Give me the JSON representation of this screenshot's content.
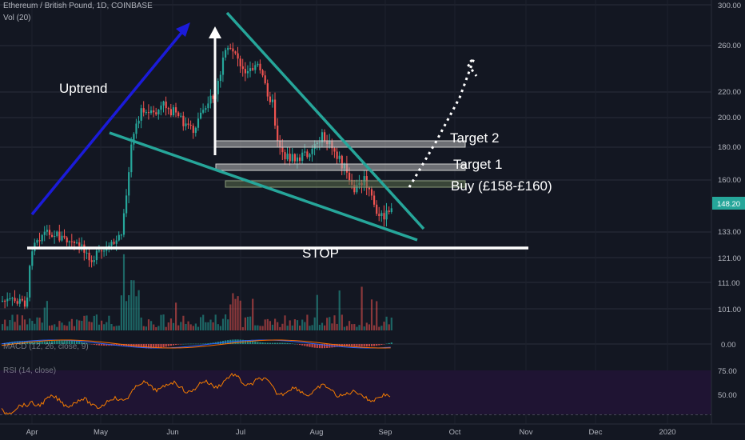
{
  "header": {
    "title": "Ethereum / British Pound, 1D, COINBASE",
    "vol_label": "Vol (20)"
  },
  "indicator_labels": {
    "macd": "MACD (12, 26, close, 9)",
    "rsi": "RSI (14, close)"
  },
  "annotations": {
    "uptrend": "Uptrend",
    "target2": "Target 2",
    "target1": "Target 1",
    "buy": "Buy (£158-£160)",
    "stop": "STOP"
  },
  "colors": {
    "background": "#131722",
    "up": "#26a69a",
    "down": "#ef5350",
    "trendline": "#26a69a",
    "uptrend_arrow": "#1b1bd9",
    "rsi_band": "#1f1433",
    "rsi_line": "#f57c00",
    "price_badge": "#26a69a"
  },
  "chart_data": {
    "type": "candlestick",
    "price_axis_ticks": [
      "300.00",
      "260.00",
      "220.00",
      "200.00",
      "180.00",
      "160.00",
      "148.20",
      "133.00",
      "121.00",
      "111.00",
      "101.00"
    ],
    "last_price": "148.20",
    "macd_axis_ticks": [
      "0.00"
    ],
    "rsi_axis_ticks": [
      "75.00",
      "50.00"
    ],
    "time_axis_labels": [
      "Apr",
      "May",
      "Jun",
      "Jul",
      "Aug",
      "Sep",
      "Oct",
      "Nov",
      "Dec",
      "2020"
    ],
    "buy_zone": [
      158,
      160
    ],
    "target1": 165,
    "target2": 180,
    "stop": 126
  }
}
